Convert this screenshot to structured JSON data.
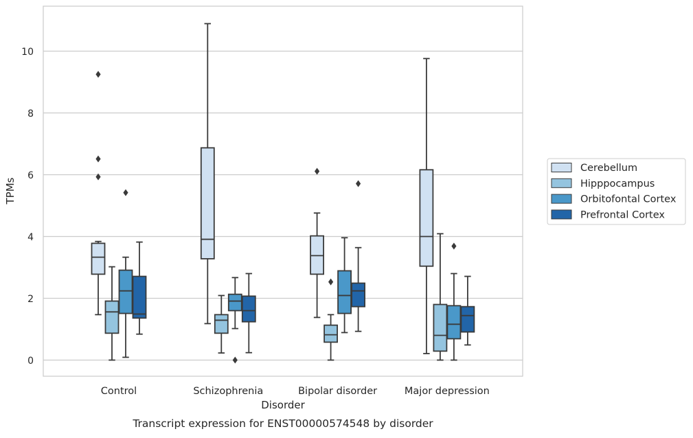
{
  "chart_data": {
    "type": "box",
    "xlabel": "Disorder",
    "ylabel": "TPMs",
    "caption": "Transcript expression for ENST00000574548 by disorder",
    "ylim": [
      -0.5,
      11.4
    ],
    "yticks": [
      0,
      2,
      4,
      6,
      8,
      10
    ],
    "grid": true,
    "legend_position": "right",
    "categories": [
      "Control",
      "Schizophrenia",
      "Bipolar disorder",
      "Major depression"
    ],
    "series": [
      {
        "name": "Cerebellum",
        "color": "#d0e1f2",
        "boxes": [
          {
            "whisker_low": 1.47,
            "q1": 2.78,
            "median": 3.33,
            "q3": 3.78,
            "whisker_high": 3.84,
            "outliers": [
              5.93,
              6.51,
              9.25
            ]
          },
          {
            "whisker_low": 1.18,
            "q1": 3.28,
            "median": 3.91,
            "q3": 6.87,
            "whisker_high": 10.89,
            "outliers": []
          },
          {
            "whisker_low": 1.38,
            "q1": 2.78,
            "median": 3.38,
            "q3": 4.02,
            "whisker_high": 4.76,
            "outliers": [
              6.11
            ]
          },
          {
            "whisker_low": 0.21,
            "q1": 3.04,
            "median": 4.0,
            "q3": 6.16,
            "whisker_high": 9.76,
            "outliers": []
          }
        ]
      },
      {
        "name": "Hipppocampus",
        "color": "#94c4df",
        "boxes": [
          {
            "whisker_low": 0.0,
            "q1": 0.87,
            "median": 1.56,
            "q3": 1.91,
            "whisker_high": 3.02,
            "outliers": []
          },
          {
            "whisker_low": 0.23,
            "q1": 0.87,
            "median": 1.29,
            "q3": 1.47,
            "whisker_high": 2.09,
            "outliers": []
          },
          {
            "whisker_low": 0.0,
            "q1": 0.58,
            "median": 0.82,
            "q3": 1.13,
            "whisker_high": 1.47,
            "outliers": [
              2.53
            ]
          },
          {
            "whisker_low": 0.0,
            "q1": 0.29,
            "median": 0.8,
            "q3": 1.8,
            "whisker_high": 4.09,
            "outliers": []
          }
        ]
      },
      {
        "name": "Orbitofontal Cortex",
        "color": "#4a98c9",
        "boxes": [
          {
            "whisker_low": 0.09,
            "q1": 1.51,
            "median": 2.24,
            "q3": 2.91,
            "whisker_high": 3.33,
            "outliers": [
              5.42
            ]
          },
          {
            "whisker_low": 1.02,
            "q1": 1.6,
            "median": 1.91,
            "q3": 2.13,
            "whisker_high": 2.67,
            "outliers": [
              0.0
            ]
          },
          {
            "whisker_low": 0.89,
            "q1": 1.51,
            "median": 2.09,
            "q3": 2.89,
            "whisker_high": 3.96,
            "outliers": []
          },
          {
            "whisker_low": 0.0,
            "q1": 0.69,
            "median": 1.16,
            "q3": 1.76,
            "whisker_high": 2.8,
            "outliers": [
              3.69
            ]
          }
        ]
      },
      {
        "name": "Prefrontal Cortex",
        "color": "#2265a8",
        "boxes": [
          {
            "whisker_low": 0.84,
            "q1": 1.36,
            "median": 1.49,
            "q3": 2.71,
            "whisker_high": 3.82,
            "outliers": []
          },
          {
            "whisker_low": 0.24,
            "q1": 1.24,
            "median": 1.6,
            "q3": 2.07,
            "whisker_high": 2.8,
            "outliers": []
          },
          {
            "whisker_low": 0.93,
            "q1": 1.73,
            "median": 2.24,
            "q3": 2.49,
            "whisker_high": 3.64,
            "outliers": [
              5.71
            ]
          },
          {
            "whisker_low": 0.49,
            "q1": 0.91,
            "median": 1.44,
            "q3": 1.73,
            "whisker_high": 2.71,
            "outliers": []
          }
        ]
      }
    ]
  }
}
